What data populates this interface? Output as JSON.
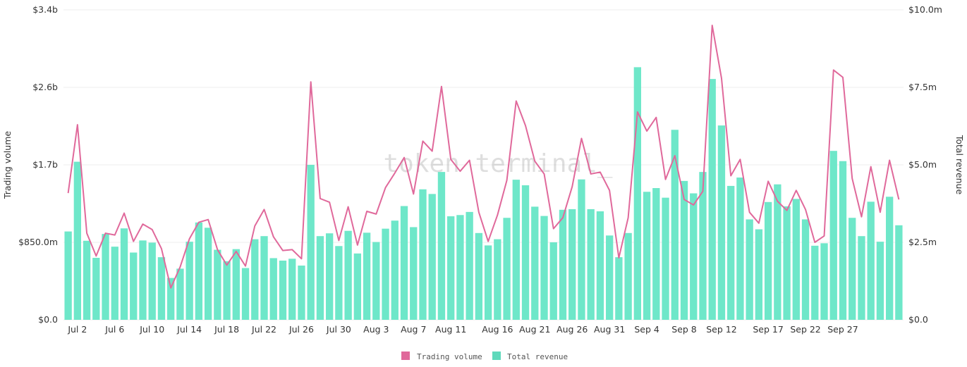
{
  "chart_data": {
    "type": "bar+line",
    "watermark": "token terminal_",
    "left_axis": {
      "title": "Trading volume",
      "ticks": [
        "$0.0",
        "$850.0m",
        "$1.7b",
        "$2.6b",
        "$3.4b"
      ],
      "range_billions": [
        0,
        3.4
      ]
    },
    "right_axis": {
      "title": "Total revenue",
      "ticks": [
        "$0.0",
        "$2.5m",
        "$5.0m",
        "$7.5m",
        "$10.0m"
      ],
      "range_millions": [
        0,
        10.0
      ]
    },
    "x_ticks": [
      "Jul 2",
      "Jul 6",
      "Jul 10",
      "Jul 14",
      "Jul 18",
      "Jul 22",
      "Jul 26",
      "Jul 30",
      "Aug 3",
      "Aug 7",
      "Aug 11",
      "Aug 16",
      "Aug 21",
      "Aug 26",
      "Aug 31",
      "Sep 4",
      "Sep 8",
      "Sep 12",
      "Sep 17",
      "Sep 22",
      "Sep 27"
    ],
    "legend": [
      "Trading volume",
      "Total revenue"
    ],
    "colors": {
      "line": "#e0699b",
      "bar": "#6ee7c9",
      "legend_line": "#e0699b",
      "legend_bar": "#5fd9bb",
      "grid": "#eeeeee"
    },
    "series": [
      {
        "name": "Trading volume",
        "kind": "line",
        "axis": "left",
        "unit": "billions USD",
        "values": [
          1.39,
          2.14,
          0.95,
          0.7,
          0.95,
          0.93,
          1.17,
          0.86,
          1.05,
          0.99,
          0.78,
          0.35,
          0.58,
          0.89,
          1.07,
          1.1,
          0.77,
          0.6,
          0.75,
          0.59,
          1.03,
          1.21,
          0.91,
          0.76,
          0.77,
          0.67,
          2.61,
          1.33,
          1.29,
          0.87,
          1.24,
          0.82,
          1.19,
          1.16,
          1.45,
          1.61,
          1.78,
          1.38,
          1.96,
          1.85,
          2.56,
          1.76,
          1.63,
          1.75,
          1.18,
          0.86,
          1.15,
          1.53,
          2.4,
          2.13,
          1.74,
          1.6,
          1.0,
          1.12,
          1.46,
          1.99,
          1.6,
          1.62,
          1.42,
          0.68,
          1.12,
          2.28,
          2.07,
          2.22,
          1.54,
          1.8,
          1.32,
          1.26,
          1.41,
          3.23,
          2.65,
          1.58,
          1.76,
          1.18,
          1.06,
          1.52,
          1.3,
          1.2,
          1.42,
          1.21,
          0.85,
          0.92,
          2.74,
          2.66,
          1.55,
          1.13,
          1.68,
          1.18,
          1.75,
          1.32
        ]
      },
      {
        "name": "Total revenue",
        "kind": "bar",
        "axis": "right",
        "unit": "millions USD",
        "values": [
          2.85,
          5.1,
          2.55,
          2.0,
          2.77,
          2.36,
          2.95,
          2.17,
          2.56,
          2.49,
          2.02,
          1.35,
          1.65,
          2.52,
          3.14,
          2.97,
          2.26,
          1.89,
          2.28,
          1.67,
          2.6,
          2.7,
          1.99,
          1.91,
          1.97,
          1.75,
          5.0,
          2.7,
          2.79,
          2.38,
          2.87,
          2.14,
          2.81,
          2.51,
          2.94,
          3.2,
          3.67,
          2.99,
          4.21,
          4.06,
          4.77,
          3.34,
          3.38,
          3.48,
          2.8,
          2.4,
          2.6,
          3.29,
          4.52,
          4.34,
          3.65,
          3.35,
          2.5,
          3.55,
          3.57,
          4.53,
          3.57,
          3.5,
          2.72,
          2.02,
          2.8,
          8.15,
          4.13,
          4.25,
          3.94,
          6.13,
          4.48,
          4.08,
          4.77,
          7.77,
          6.27,
          4.32,
          4.59,
          3.24,
          2.92,
          3.8,
          4.37,
          3.66,
          3.9,
          3.24,
          2.39,
          2.47,
          5.45,
          5.12,
          3.29,
          2.7,
          3.81,
          2.52,
          3.97,
          3.05
        ]
      }
    ]
  }
}
